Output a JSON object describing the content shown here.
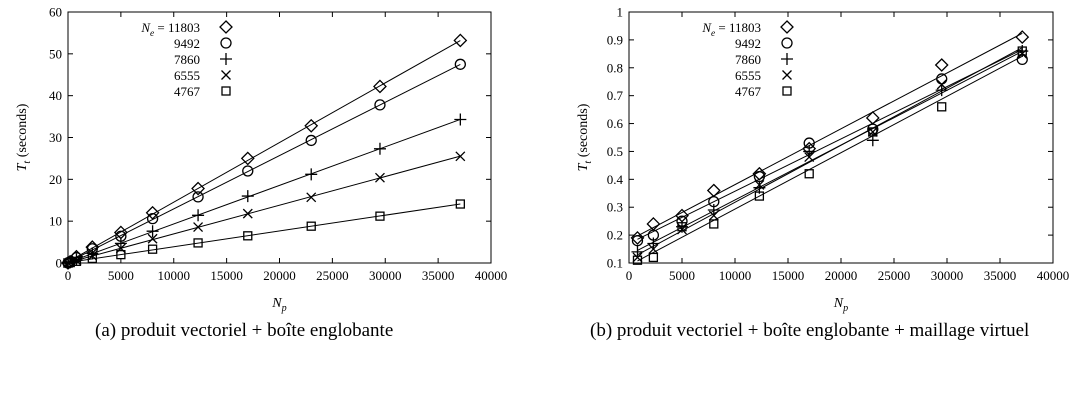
{
  "chart_data": [
    {
      "type": "scatter",
      "caption": "(a) produit vectoriel + boîte englobante",
      "xlabel": "N_p",
      "ylabel": "T_t (seconds)",
      "xlim": [
        0,
        40000
      ],
      "ylim": [
        0,
        60
      ],
      "xticks": [
        "0",
        "5000",
        "10000",
        "15000",
        "20000",
        "25000",
        "30000",
        "35000",
        "40000"
      ],
      "yticks": [
        "0",
        "10",
        "20",
        "30",
        "40",
        "50",
        "60"
      ],
      "legend_prefix": "N_e = ",
      "legend_position": "top-left",
      "grid": false,
      "series": [
        {
          "name": "11803",
          "marker": "diamond",
          "x": [
            0,
            200,
            800,
            2300,
            5000,
            8000,
            12300,
            17000,
            23000,
            29500,
            37100
          ],
          "y": [
            0.0,
            0.3,
            1.5,
            3.8,
            7.3,
            12.0,
            17.8,
            25.0,
            32.8,
            42.2,
            53.2
          ]
        },
        {
          "name": "9492",
          "marker": "circle",
          "x": [
            0,
            200,
            800,
            2300,
            5000,
            8000,
            12300,
            17000,
            23000,
            29500,
            37100
          ],
          "y": [
            0.0,
            0.3,
            1.3,
            3.4,
            6.4,
            10.6,
            15.8,
            22.0,
            29.3,
            37.8,
            47.5
          ]
        },
        {
          "name": "7860",
          "marker": "plus",
          "x": [
            0,
            200,
            800,
            2300,
            5000,
            8000,
            12300,
            17000,
            23000,
            29500,
            37100
          ],
          "y": [
            0.0,
            0.2,
            0.9,
            2.3,
            4.7,
            7.6,
            11.4,
            16.0,
            21.2,
            27.3,
            34.3
          ]
        },
        {
          "name": "6555",
          "marker": "cross",
          "x": [
            0,
            200,
            800,
            2300,
            5000,
            8000,
            12300,
            17000,
            23000,
            29500,
            37100
          ],
          "y": [
            0.0,
            0.2,
            0.6,
            1.7,
            3.5,
            5.8,
            8.6,
            11.8,
            15.7,
            20.4,
            25.5
          ]
        },
        {
          "name": "4767",
          "marker": "square",
          "x": [
            0,
            200,
            800,
            2300,
            5000,
            8000,
            12300,
            17000,
            23000,
            29500,
            37100
          ],
          "y": [
            0.0,
            0.1,
            0.4,
            1.1,
            2.0,
            3.3,
            4.8,
            6.5,
            8.8,
            11.2,
            14.1
          ]
        }
      ]
    },
    {
      "type": "scatter",
      "caption": "(b) produit vectoriel + boîte englobante + maillage virtuel",
      "xlabel": "N_p",
      "ylabel": "T_t (seconds)",
      "xlim": [
        0,
        40000
      ],
      "ylim": [
        0.1,
        1.0
      ],
      "xticks": [
        "0",
        "5000",
        "10000",
        "15000",
        "20000",
        "25000",
        "30000",
        "35000",
        "40000"
      ],
      "yticks": [
        "0.1",
        "0.2",
        "0.3",
        "0.4",
        "0.5",
        "0.6",
        "0.7",
        "0.8",
        "0.9",
        "1"
      ],
      "legend_prefix": "N_e = ",
      "legend_position": "top-left",
      "grid": false,
      "series": [
        {
          "name": "11803",
          "marker": "diamond",
          "x": [
            800,
            2300,
            5000,
            8000,
            12300,
            17000,
            23000,
            29500,
            37100
          ],
          "y": [
            0.19,
            0.24,
            0.27,
            0.36,
            0.42,
            0.51,
            0.62,
            0.81,
            0.91
          ]
        },
        {
          "name": "9492",
          "marker": "circle",
          "x": [
            800,
            2300,
            5000,
            8000,
            12300,
            17000,
            23000,
            29500,
            37100
          ],
          "y": [
            0.18,
            0.2,
            0.25,
            0.32,
            0.41,
            0.53,
            0.58,
            0.76,
            0.83
          ]
        },
        {
          "name": "7860",
          "marker": "plus",
          "x": [
            800,
            2300,
            5000,
            8000,
            12300,
            17000,
            23000,
            29500,
            37100
          ],
          "y": [
            0.14,
            0.17,
            0.23,
            0.29,
            0.37,
            0.5,
            0.54,
            0.72,
            0.86
          ]
        },
        {
          "name": "6555",
          "marker": "cross",
          "x": [
            800,
            2300,
            5000,
            8000,
            12300,
            17000,
            23000,
            29500,
            37100
          ],
          "y": [
            0.12,
            0.15,
            0.22,
            0.27,
            0.38,
            0.48,
            0.57,
            0.74,
            0.85
          ]
        },
        {
          "name": "4767",
          "marker": "square",
          "x": [
            800,
            2300,
            5000,
            8000,
            12300,
            17000,
            23000,
            29500,
            37100
          ],
          "y": [
            0.11,
            0.12,
            0.23,
            0.24,
            0.34,
            0.42,
            0.57,
            0.66,
            0.86
          ]
        }
      ]
    }
  ]
}
